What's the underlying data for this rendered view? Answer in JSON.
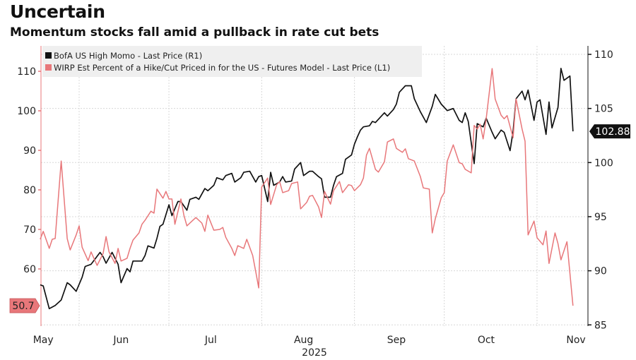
{
  "header": {
    "title": "Uncertain",
    "subtitle": "Momentum stocks fall amid a pullback in rate cut bets"
  },
  "chart_data": {
    "type": "line",
    "title": "Uncertain",
    "subtitle": "Momentum stocks fall amid a pullback in rate cut bets",
    "x_unit": "day of year 2025",
    "xlim": [
      139,
      322
    ],
    "x_ticks": [
      {
        "label": "May",
        "day": 140
      },
      {
        "label": "Jun",
        "day": 166
      },
      {
        "label": "Jul",
        "day": 196
      },
      {
        "label": "Aug",
        "day": 227
      },
      {
        "label": "Sep",
        "day": 258
      },
      {
        "label": "Oct",
        "day": 288
      },
      {
        "label": "Nov",
        "day": 318
      }
    ],
    "x_gridlines": [
      152,
      182,
      213,
      244,
      274,
      305
    ],
    "year_label": "2025",
    "left_axis": {
      "ylim": [
        48,
        116
      ],
      "ticks": [
        110,
        100,
        90,
        80,
        70,
        60
      ],
      "color": "#e8777a"
    },
    "right_axis": {
      "ylim": [
        85,
        110.5
      ],
      "ticks": [
        110,
        105,
        100,
        95,
        90,
        85
      ],
      "color": "#000000"
    },
    "grid": true,
    "legend_position": "top-left",
    "series": [
      {
        "name": "BofA US High Momo - Last Price (R1)",
        "axis": "right",
        "color": "#111111",
        "last_label": "102.88",
        "points": [
          [
            139,
            88.7
          ],
          [
            140,
            88.6
          ],
          [
            142,
            86.5
          ],
          [
            144,
            86.8
          ],
          [
            146,
            87.3
          ],
          [
            148,
            88.9
          ],
          [
            149,
            88.7
          ],
          [
            151,
            88.1
          ],
          [
            153,
            89.4
          ],
          [
            154,
            90.4
          ],
          [
            156,
            90.6
          ],
          [
            159,
            91.7
          ],
          [
            160,
            91.3
          ],
          [
            161,
            90.7
          ],
          [
            163,
            91.7
          ],
          [
            165,
            90.6
          ],
          [
            166,
            88.9
          ],
          [
            168,
            90.2
          ],
          [
            169,
            89.9
          ],
          [
            170,
            90.9
          ],
          [
            171,
            90.9
          ],
          [
            173,
            90.9
          ],
          [
            174,
            91.4
          ],
          [
            175,
            92.3
          ],
          [
            177,
            92.1
          ],
          [
            178,
            93.0
          ],
          [
            179,
            94.1
          ],
          [
            180,
            94.3
          ],
          [
            182,
            96.1
          ],
          [
            183,
            95.1
          ],
          [
            185,
            96.4
          ],
          [
            186,
            96.4
          ],
          [
            188,
            95.6
          ],
          [
            189,
            96.6
          ],
          [
            191,
            96.8
          ],
          [
            192,
            96.6
          ],
          [
            194,
            97.6
          ],
          [
            195,
            97.4
          ],
          [
            197,
            97.9
          ],
          [
            198,
            98.6
          ],
          [
            200,
            98.4
          ],
          [
            201,
            98.8
          ],
          [
            203,
            99.0
          ],
          [
            204,
            98.2
          ],
          [
            206,
            98.6
          ],
          [
            207,
            99.1
          ],
          [
            209,
            99.2
          ],
          [
            211,
            98.2
          ],
          [
            212,
            98.7
          ],
          [
            213,
            98.8
          ],
          [
            215,
            96.4
          ],
          [
            216,
            99.1
          ],
          [
            217,
            97.9
          ],
          [
            219,
            98.2
          ],
          [
            220,
            98.7
          ],
          [
            221,
            98.2
          ],
          [
            223,
            98.3
          ],
          [
            224,
            99.4
          ],
          [
            226,
            100.0
          ],
          [
            227,
            98.8
          ],
          [
            229,
            99.2
          ],
          [
            230,
            99.2
          ],
          [
            232,
            98.7
          ],
          [
            233,
            98.5
          ],
          [
            234,
            96.8
          ],
          [
            236,
            96.8
          ],
          [
            237,
            97.9
          ],
          [
            238,
            98.7
          ],
          [
            240,
            99.0
          ],
          [
            241,
            100.3
          ],
          [
            243,
            100.7
          ],
          [
            244,
            101.7
          ],
          [
            245,
            102.4
          ],
          [
            246,
            103.0
          ],
          [
            247,
            103.3
          ],
          [
            249,
            103.4
          ],
          [
            250,
            103.8
          ],
          [
            251,
            103.7
          ],
          [
            253,
            104.3
          ],
          [
            254,
            104.6
          ],
          [
            255,
            104.3
          ],
          [
            257,
            104.9
          ],
          [
            258,
            105.4
          ],
          [
            259,
            106.5
          ],
          [
            261,
            107.1
          ],
          [
            263,
            107.1
          ],
          [
            264,
            105.9
          ],
          [
            266,
            104.7
          ],
          [
            268,
            103.7
          ],
          [
            270,
            105.2
          ],
          [
            271,
            106.3
          ],
          [
            273,
            105.4
          ],
          [
            275,
            104.8
          ],
          [
            277,
            105.0
          ],
          [
            279,
            103.9
          ],
          [
            280,
            103.7
          ],
          [
            281,
            104.6
          ],
          [
            282,
            103.8
          ],
          [
            284,
            99.9
          ],
          [
            285,
            103.6
          ],
          [
            287,
            103.3
          ],
          [
            288,
            104.1
          ],
          [
            290,
            102.8
          ],
          [
            291,
            102.2
          ],
          [
            293,
            103.0
          ],
          [
            294,
            102.8
          ],
          [
            296,
            101.1
          ],
          [
            297,
            102.9
          ],
          [
            298,
            105.9
          ],
          [
            300,
            106.6
          ],
          [
            301,
            105.8
          ],
          [
            302,
            106.7
          ],
          [
            304,
            103.9
          ],
          [
            305,
            105.6
          ],
          [
            306,
            105.8
          ],
          [
            308,
            102.6
          ],
          [
            309,
            105.6
          ],
          [
            310,
            103.2
          ],
          [
            312,
            105.1
          ],
          [
            313,
            108.7
          ],
          [
            314,
            107.6
          ],
          [
            316,
            108.0
          ],
          [
            317,
            102.88
          ]
        ]
      },
      {
        "name": "WIRP Est Percent of a Hike/Cut Priced in for the US - Futures Model - Last Price (L1)",
        "axis": "left",
        "color": "#e8777a",
        "last_label": "50.7",
        "points": [
          [
            139,
            67.5
          ],
          [
            140,
            69.5
          ],
          [
            142,
            65.2
          ],
          [
            143,
            67.5
          ],
          [
            144,
            67.7
          ],
          [
            146,
            87.3
          ],
          [
            148,
            67.7
          ],
          [
            149,
            64.8
          ],
          [
            151,
            68.6
          ],
          [
            152,
            70.9
          ],
          [
            153,
            65.5
          ],
          [
            155,
            62.1
          ],
          [
            156,
            64.3
          ],
          [
            158,
            60.9
          ],
          [
            160,
            63.9
          ],
          [
            161,
            68.2
          ],
          [
            162,
            64.3
          ],
          [
            164,
            61.4
          ],
          [
            165,
            65.2
          ],
          [
            166,
            62.0
          ],
          [
            168,
            62.7
          ],
          [
            169,
            65.2
          ],
          [
            170,
            67.3
          ],
          [
            172,
            69.1
          ],
          [
            173,
            71.3
          ],
          [
            174,
            72.3
          ],
          [
            176,
            74.6
          ],
          [
            177,
            74.1
          ],
          [
            178,
            80.2
          ],
          [
            180,
            77.9
          ],
          [
            181,
            79.6
          ],
          [
            182,
            77.7
          ],
          [
            183,
            77.7
          ],
          [
            184,
            71.3
          ],
          [
            186,
            77.7
          ],
          [
            187,
            73.6
          ],
          [
            188,
            70.9
          ],
          [
            190,
            72.3
          ],
          [
            191,
            73.0
          ],
          [
            193,
            71.6
          ],
          [
            194,
            69.5
          ],
          [
            195,
            73.6
          ],
          [
            197,
            69.8
          ],
          [
            199,
            70.0
          ],
          [
            200,
            70.5
          ],
          [
            201,
            68.0
          ],
          [
            203,
            65.2
          ],
          [
            204,
            63.4
          ],
          [
            205,
            65.9
          ],
          [
            207,
            65.2
          ],
          [
            208,
            67.5
          ],
          [
            210,
            63.4
          ],
          [
            211,
            59.3
          ],
          [
            212,
            55.2
          ],
          [
            213,
            80.7
          ],
          [
            215,
            83.0
          ],
          [
            216,
            76.3
          ],
          [
            218,
            81.3
          ],
          [
            219,
            82.1
          ],
          [
            220,
            79.3
          ],
          [
            222,
            79.8
          ],
          [
            223,
            81.6
          ],
          [
            225,
            82.0
          ],
          [
            226,
            75.2
          ],
          [
            228,
            76.8
          ],
          [
            229,
            78.4
          ],
          [
            230,
            78.6
          ],
          [
            232,
            75.7
          ],
          [
            233,
            73.0
          ],
          [
            234,
            79.6
          ],
          [
            236,
            76.4
          ],
          [
            237,
            79.8
          ],
          [
            239,
            82.1
          ],
          [
            240,
            79.3
          ],
          [
            242,
            81.3
          ],
          [
            243,
            81.1
          ],
          [
            244,
            79.8
          ],
          [
            246,
            81.3
          ],
          [
            247,
            83.0
          ],
          [
            248,
            88.8
          ],
          [
            249,
            90.5
          ],
          [
            251,
            85.2
          ],
          [
            252,
            84.5
          ],
          [
            254,
            87.1
          ],
          [
            255,
            92.1
          ],
          [
            257,
            92.9
          ],
          [
            258,
            90.5
          ],
          [
            260,
            89.5
          ],
          [
            261,
            90.4
          ],
          [
            262,
            87.9
          ],
          [
            264,
            87.3
          ],
          [
            266,
            83.4
          ],
          [
            267,
            80.5
          ],
          [
            269,
            80.2
          ],
          [
            270,
            69.1
          ],
          [
            271,
            72.7
          ],
          [
            273,
            78.0
          ],
          [
            274,
            79.3
          ],
          [
            275,
            87.3
          ],
          [
            277,
            91.4
          ],
          [
            279,
            86.9
          ],
          [
            280,
            86.6
          ],
          [
            281,
            85.2
          ],
          [
            283,
            84.3
          ],
          [
            284,
            96.3
          ],
          [
            285,
            95.4
          ],
          [
            286,
            96.6
          ],
          [
            287,
            92.9
          ],
          [
            288,
            98.0
          ],
          [
            290,
            110.7
          ],
          [
            291,
            103.0
          ],
          [
            293,
            98.9
          ],
          [
            294,
            98.0
          ],
          [
            295,
            98.8
          ],
          [
            297,
            93.2
          ],
          [
            298,
            103.0
          ],
          [
            300,
            95.4
          ],
          [
            301,
            92.3
          ],
          [
            302,
            68.6
          ],
          [
            304,
            72.1
          ],
          [
            305,
            67.9
          ],
          [
            307,
            66.1
          ],
          [
            308,
            69.6
          ],
          [
            309,
            61.4
          ],
          [
            311,
            69.1
          ],
          [
            312,
            66.4
          ],
          [
            313,
            62.3
          ],
          [
            315,
            66.9
          ],
          [
            317,
            50.7
          ]
        ]
      }
    ]
  }
}
